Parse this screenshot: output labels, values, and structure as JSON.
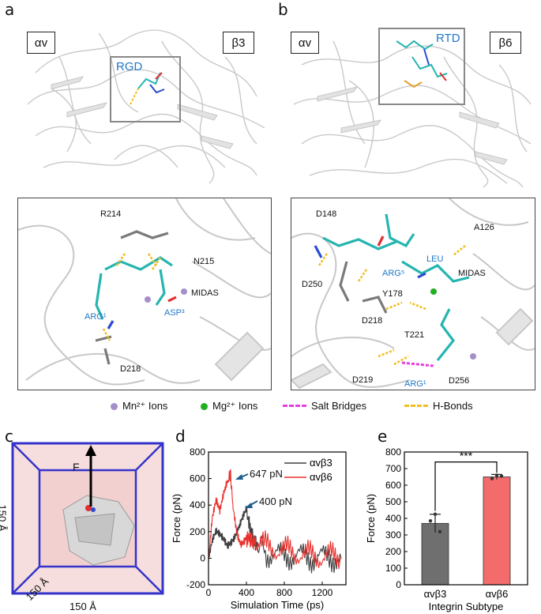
{
  "panels": {
    "a": {
      "label": "a",
      "left_box": "αv",
      "right_box": "β3",
      "inset_label": "RGD",
      "residues": [
        "R214",
        "N215",
        "MIDAS",
        "ARG¹",
        "ASP³",
        "D218"
      ]
    },
    "b": {
      "label": "b",
      "left_box": "αv",
      "right_box": "β6",
      "inset_label": "RTD",
      "residues": [
        "D148",
        "A126",
        "LEU",
        "ARG⁵",
        "MIDAS",
        "D250",
        "Y178",
        "D218",
        "T221",
        "D219",
        "ARG¹",
        "D256"
      ]
    },
    "c": {
      "label": "c",
      "force_label": "F",
      "dim_left": "150 Å",
      "dim_diag": "150 Å",
      "dim_bottom": "150 Å"
    },
    "d": {
      "label": "d",
      "annot_1": "647 pN",
      "annot_2": "400 pN"
    },
    "e": {
      "label": "e",
      "signif": "***"
    }
  },
  "legend": {
    "items": [
      {
        "text": "Mn²⁺ Ions",
        "color": "#a58fcb",
        "kind": "dot"
      },
      {
        "text": "Mg²⁺ Ions",
        "color": "#22b022",
        "kind": "dot"
      },
      {
        "text": "Salt Bridges",
        "color": "#e83ee0",
        "kind": "dash"
      },
      {
        "text": "H-Bonds",
        "color": "#f2bd1d",
        "kind": "dash"
      }
    ]
  },
  "chart_data": [
    {
      "type": "line",
      "title": "",
      "xlabel": "Simulation Time (ps)",
      "ylabel": "Force (pN)",
      "xlim": [
        0,
        1450
      ],
      "ylim": [
        -200,
        800
      ],
      "xticks": [
        0,
        400,
        800,
        1200
      ],
      "yticks": [
        -200,
        0,
        200,
        400,
        600,
        800
      ],
      "legend_position": "top-right",
      "series": [
        {
          "name": "αvβ3",
          "color": "#404040",
          "x": [
            0,
            40,
            80,
            120,
            160,
            200,
            240,
            280,
            320,
            360,
            400,
            440,
            480,
            520,
            600,
            700,
            800,
            900,
            1000,
            1100,
            1200,
            1300,
            1400
          ],
          "y": [
            0,
            120,
            180,
            150,
            120,
            80,
            120,
            180,
            260,
            340,
            400,
            250,
            120,
            60,
            40,
            20,
            30,
            10,
            20,
            0,
            10,
            5,
            0
          ]
        },
        {
          "name": "αvβ6",
          "color": "#e8302c",
          "x": [
            0,
            40,
            80,
            120,
            160,
            200,
            230,
            260,
            300,
            340,
            380,
            420,
            460,
            500,
            600,
            700,
            800,
            900,
            1000,
            1100,
            1200,
            1300,
            1400
          ],
          "y": [
            0,
            300,
            420,
            330,
            460,
            560,
            647,
            380,
            200,
            130,
            160,
            210,
            150,
            120,
            90,
            70,
            60,
            40,
            30,
            20,
            10,
            15,
            5
          ]
        }
      ]
    },
    {
      "type": "bar",
      "title": "",
      "xlabel": "Integrin Subtype",
      "ylabel": "Force (pN)",
      "ylim": [
        0,
        800
      ],
      "yticks": [
        0,
        100,
        200,
        300,
        400,
        500,
        600,
        700,
        800
      ],
      "categories": [
        "αvβ3",
        "αvβ6"
      ],
      "values": [
        370,
        650
      ],
      "errors": [
        55,
        15
      ],
      "points": [
        [
          385,
          425,
          320
        ],
        [
          640,
          660,
          655
        ]
      ],
      "colors": [
        "#6f6f6f",
        "#f36b6b"
      ]
    }
  ]
}
